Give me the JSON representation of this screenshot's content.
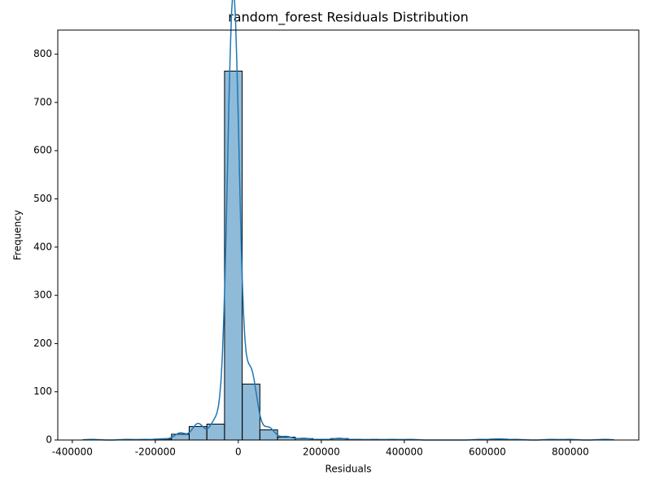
{
  "chart_data": {
    "type": "histogram",
    "title": "random_forest Residuals Distribution",
    "x_label": "Residuals",
    "y_label": "Frequency",
    "bins": [
      -374000,
      -331400,
      -288800,
      -246200,
      -203600,
      -161000,
      -118400,
      -75800,
      -33200,
      9400,
      52000,
      94600,
      137200,
      179800,
      222400,
      265000,
      307600,
      350200,
      392800,
      435400,
      478000,
      520600,
      563200,
      605800,
      648400,
      691000,
      733600,
      776200,
      818800,
      861400,
      904000
    ],
    "counts": [
      1,
      0,
      1,
      1,
      2,
      12,
      28,
      33,
      765,
      116,
      21,
      6,
      3,
      1,
      3,
      1,
      1,
      1,
      1,
      0,
      0,
      0,
      1,
      2,
      1,
      0,
      1,
      1,
      0,
      1
    ],
    "color": "#1f77b4",
    "kde": true,
    "xlim": [
      -435000,
      965000
    ],
    "xticks": [
      -400000,
      -200000,
      0,
      200000,
      400000,
      600000,
      800000
    ],
    "ylim": [
      0,
      850
    ],
    "yticks": [
      0,
      100,
      200,
      300,
      400,
      500,
      600,
      700,
      800
    ]
  }
}
